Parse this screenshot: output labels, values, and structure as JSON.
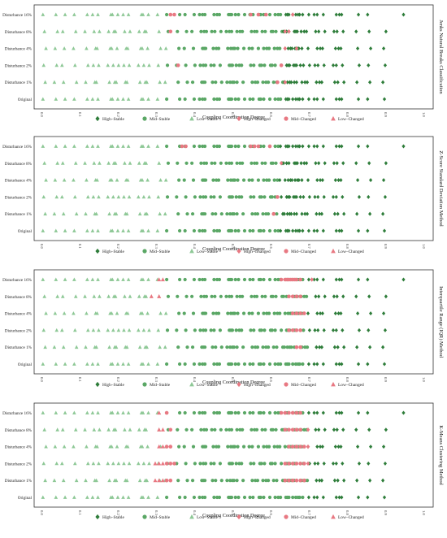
{
  "legend": [
    {
      "name": "High–Stable",
      "shape": "diamond",
      "color": "#2e7d3a"
    },
    {
      "name": "Mid–Stable",
      "shape": "circle",
      "color": "#5aa765"
    },
    {
      "name": "Low–Stable",
      "shape": "triangle",
      "color": "#8ec896"
    },
    {
      "name": "High–Changed",
      "shape": "diamond",
      "color": "#e87882"
    },
    {
      "name": "Mid–Changed",
      "shape": "circle",
      "color": "#e87882"
    },
    {
      "name": "Low–Changed",
      "shape": "triangle",
      "color": "#e87882"
    }
  ],
  "chart_data": [
    {
      "type": "scatter",
      "title": "Jenks Natural Breaks Classification",
      "xlabel": "Coupling Coordination Degree",
      "xlim": [
        0,
        1.0
      ],
      "xticks": [
        "0.0",
        "0.1",
        "0.2",
        "0.3",
        "0.4",
        "0.5",
        "0.6",
        "0.7",
        "0.8",
        "0.9",
        "1.0"
      ],
      "categories": [
        "Original",
        "Disturbance 1%",
        "Disturbance 2%",
        "Disturbance 4%",
        "Disturbance 8%",
        "Disturbance 16%"
      ],
      "high_threshold": 0.635,
      "changed": [
        {
          "row": "Disturbance 16%",
          "x": [
            0.34,
            0.35,
            0.55,
            0.57,
            0.59,
            0.66
          ]
        },
        {
          "row": "Disturbance 8%",
          "x": [
            0.34,
            0.64,
            0.65
          ]
        },
        {
          "row": "Disturbance 4%",
          "x": [
            0.64,
            0.67
          ]
        },
        {
          "row": "Disturbance 2%",
          "x": [
            0.36,
            0.63
          ]
        },
        {
          "row": "Disturbance 1%",
          "x": [
            0.62,
            0.64
          ]
        }
      ]
    },
    {
      "type": "scatter",
      "title": "Z-Score Standard Deviation Method",
      "xlabel": "Coupling Coordination Degree",
      "xlim": [
        0,
        1.0
      ],
      "xticks": [
        "0.0",
        "0.1",
        "0.2",
        "0.3",
        "0.4",
        "0.5",
        "0.6",
        "0.7",
        "0.8",
        "0.9",
        "1.0"
      ],
      "categories": [
        "Original",
        "Disturbance 1%",
        "Disturbance 2%",
        "Disturbance 4%",
        "Disturbance 8%",
        "Disturbance 16%"
      ],
      "high_threshold": 0.625,
      "changed": [
        {
          "row": "Disturbance 16%",
          "x": [
            0.37,
            0.38,
            0.55,
            0.56,
            0.57,
            0.6
          ]
        },
        {
          "row": "Disturbance 8%",
          "x": [
            0.63
          ]
        },
        {
          "row": "Disturbance 2%",
          "x": [
            0.62
          ]
        },
        {
          "row": "Disturbance 1%",
          "x": [
            0.61
          ]
        }
      ]
    },
    {
      "type": "scatter",
      "title": "Interquartile Range (IQR) Method",
      "xlabel": "Coupling Coordination Degree",
      "xlim": [
        0,
        1.0
      ],
      "xticks": [
        "0.0",
        "0.1",
        "0.2",
        "0.3",
        "0.4",
        "0.5",
        "0.6",
        "0.7",
        "0.8",
        "0.9",
        "1.0"
      ],
      "categories": [
        "Original",
        "Disturbance 1%",
        "Disturbance 2%",
        "Disturbance 4%",
        "Disturbance 8%",
        "Disturbance 16%"
      ],
      "high_threshold": 0.7,
      "changed": [
        {
          "row": "Disturbance 16%",
          "x": [
            0.31,
            0.32,
            0.63,
            0.64,
            0.645,
            0.65,
            0.655,
            0.66,
            0.665,
            0.67,
            0.68,
            0.71
          ]
        },
        {
          "row": "Disturbance 8%",
          "x": [
            0.29,
            0.31,
            0.65,
            0.66,
            0.67,
            0.68
          ]
        },
        {
          "row": "Disturbance 4%",
          "x": [
            0.66,
            0.67,
            0.68,
            0.69
          ]
        },
        {
          "row": "Disturbance 2%",
          "x": [
            0.65,
            0.66,
            0.67,
            0.68
          ]
        },
        {
          "row": "Disturbance 1%",
          "x": [
            0.67,
            0.68
          ]
        }
      ]
    },
    {
      "type": "scatter",
      "title": "K-Means Clustering Method",
      "xlabel": "Coupling Coordination Degree",
      "xlim": [
        0,
        1.0
      ],
      "xticks": [
        "0.0",
        "0.1",
        "0.2",
        "0.3",
        "0.4",
        "0.5",
        "0.6",
        "0.7",
        "0.8",
        "0.9",
        "1.0"
      ],
      "categories": [
        "Original",
        "Disturbance 1%",
        "Disturbance 2%",
        "Disturbance 4%",
        "Disturbance 8%",
        "Disturbance 16%"
      ],
      "high_threshold": 0.7,
      "changed": [
        {
          "row": "Disturbance 16%",
          "x": [
            0.31,
            0.33,
            0.63,
            0.64,
            0.65,
            0.66,
            0.67,
            0.68
          ]
        },
        {
          "row": "Disturbance 8%",
          "x": [
            0.31,
            0.32,
            0.34,
            0.64,
            0.65,
            0.66,
            0.67,
            0.68,
            0.7
          ]
        },
        {
          "row": "Disturbance 4%",
          "x": [
            0.31,
            0.32,
            0.33,
            0.34,
            0.65,
            0.66,
            0.67,
            0.68,
            0.69,
            0.7
          ]
        },
        {
          "row": "Disturbance 2%",
          "x": [
            0.3,
            0.31,
            0.32,
            0.33,
            0.34,
            0.35,
            0.64,
            0.65,
            0.66,
            0.67,
            0.68,
            0.69,
            0.7
          ]
        },
        {
          "row": "Disturbance 1%",
          "x": [
            0.3,
            0.31,
            0.32,
            0.33,
            0.34,
            0.64,
            0.65,
            0.66,
            0.67,
            0.68,
            0.69
          ]
        }
      ]
    }
  ],
  "base_points": [
    0.01,
    0.04,
    0.06,
    0.09,
    0.12,
    0.14,
    0.15,
    0.18,
    0.19,
    0.2,
    0.22,
    0.23,
    0.26,
    0.27,
    0.28,
    0.31,
    0.33,
    0.36,
    0.38,
    0.4,
    0.42,
    0.43,
    0.45,
    0.47,
    0.49,
    0.5,
    0.51,
    0.53,
    0.55,
    0.57,
    0.58,
    0.6,
    0.61,
    0.63,
    0.64,
    0.65,
    0.66,
    0.67,
    0.68,
    0.7,
    0.72,
    0.74,
    0.77,
    0.79,
    0.83,
    0.86,
    0.9
  ]
}
